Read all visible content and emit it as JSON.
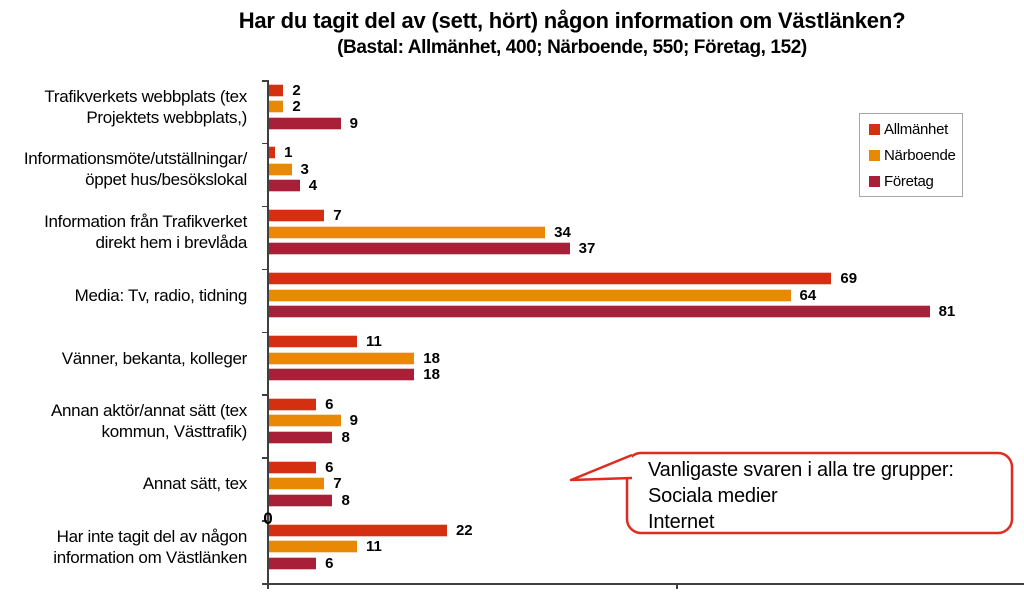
{
  "title": "Har du tagit del av (sett, hört) någon information om Västlänken?",
  "subtitle": "(Bastal: Allmänhet, 400; Närboende, 550; Företag, 152)",
  "legend": {
    "items": [
      {
        "label": "Allmänhet",
        "color": "#d52f11"
      },
      {
        "label": "Närboende",
        "color": "#e88804"
      },
      {
        "label": "Företag",
        "color": "#a81f38"
      }
    ]
  },
  "callout": {
    "border_color": "#e02b20",
    "lines": [
      "Vanligaste svaren i alla tre grupper:",
      "Sociala medier",
      "Internet"
    ]
  },
  "chart_data": {
    "type": "bar",
    "orientation": "horizontal",
    "title": "Har du tagit del av (sett, hört) någon information om Västlänken?",
    "subtitle": "(Bastal: Allmänhet, 400; Närboende, 550; Företag, 152)",
    "categories": [
      {
        "label": "Trafikverkets webbplats (tex Projektets webbplats,)",
        "label_lines": [
          "Trafikverkets webbplats (tex",
          "Projektets webbplats,)"
        ]
      },
      {
        "label": "Informationsmöte/utställningar/öppet hus/besökslokal",
        "label_lines": [
          "Informationsmöte/utställningar/",
          "öppet hus/besökslokal"
        ]
      },
      {
        "label": "Information från Trafikverket direkt hem i brevlåda",
        "label_lines": [
          "Information från Trafikverket",
          "direkt hem i brevlåda"
        ]
      },
      {
        "label": "Media: Tv, radio, tidning",
        "label_lines": [
          "Media: Tv, radio, tidning"
        ]
      },
      {
        "label": "Vänner, bekanta, kolleger",
        "label_lines": [
          "Vänner, bekanta, kolleger"
        ]
      },
      {
        "label": "Annan aktör/annat sätt (tex kommun, Västtrafik)",
        "label_lines": [
          "Annan aktör/annat sätt (tex",
          "kommun, Västtrafik)"
        ]
      },
      {
        "label": "Annat sätt, tex",
        "label_lines": [
          "Annat sätt, tex"
        ]
      },
      {
        "label": "Har inte tagit del av någon information om Västlänken",
        "label_lines": [
          "Har inte tagit del av någon",
          "information om Västlänken"
        ]
      }
    ],
    "series": [
      {
        "name": "Allmänhet",
        "color": "#d52f11",
        "values": [
          2,
          1,
          7,
          69,
          11,
          6,
          6,
          22
        ]
      },
      {
        "name": "Närboende",
        "color": "#e88804",
        "values": [
          2,
          3,
          34,
          64,
          18,
          9,
          7,
          11
        ]
      },
      {
        "name": "Företag",
        "color": "#a81f38",
        "values": [
          9,
          4,
          37,
          81,
          18,
          8,
          8,
          6
        ]
      }
    ],
    "xlim": [
      0,
      92.5
    ],
    "x_ticks": [
      0,
      50
    ],
    "grid": false,
    "legend_position": "upper right",
    "value_labels": true,
    "axis_color": "#3f3f3f"
  }
}
